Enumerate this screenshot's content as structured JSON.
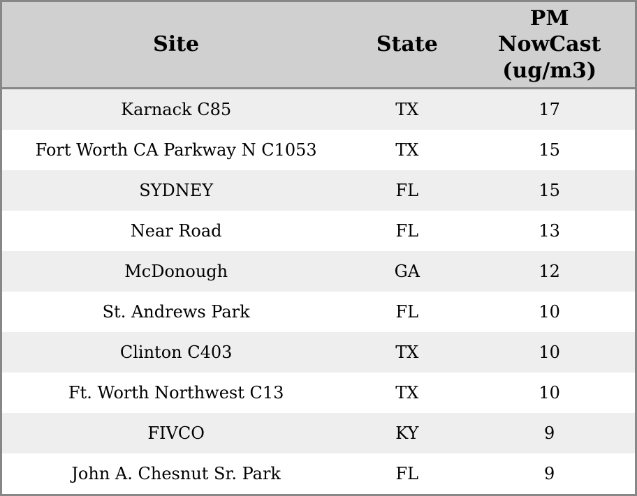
{
  "colors": {
    "header_bg": "#d0d0d0",
    "row_stripe_bg": "#eeeeee",
    "row_bg": "#ffffff",
    "border": "#878787",
    "text": "#000000"
  },
  "chart_data": {
    "type": "table",
    "columns": [
      "Site",
      "State",
      "PM NowCast (ug/m3)"
    ],
    "rows": [
      [
        "Karnack C85",
        "TX",
        17
      ],
      [
        "Fort Worth CA Parkway N C1053",
        "TX",
        15
      ],
      [
        "SYDNEY",
        "FL",
        15
      ],
      [
        "Near Road",
        "FL",
        13
      ],
      [
        "McDonough",
        "GA",
        12
      ],
      [
        "St. Andrews Park",
        "FL",
        10
      ],
      [
        "Clinton C403",
        "TX",
        10
      ],
      [
        "Ft. Worth Northwest C13",
        "TX",
        10
      ],
      [
        "FIVCO",
        "KY",
        9
      ],
      [
        "John A. Chesnut Sr. Park",
        "FL",
        9
      ]
    ]
  }
}
